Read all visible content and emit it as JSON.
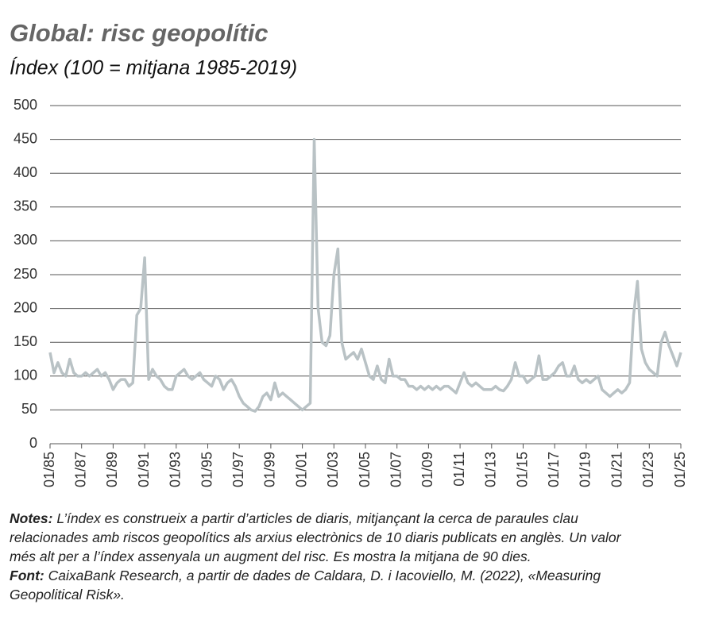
{
  "chart_data": {
    "type": "line",
    "title": "Global: risc geopolític",
    "subtitle": "Índex (100 = mitjana 1985-2019)",
    "x": [
      "01/85",
      "04/85",
      "07/85",
      "10/85",
      "01/86",
      "04/86",
      "07/86",
      "10/86",
      "01/87",
      "04/87",
      "07/87",
      "10/87",
      "01/88",
      "04/88",
      "07/88",
      "10/88",
      "01/89",
      "04/89",
      "07/89",
      "10/89",
      "01/90",
      "04/90",
      "07/90",
      "10/90",
      "01/91",
      "04/91",
      "07/91",
      "10/91",
      "01/92",
      "04/92",
      "07/92",
      "10/92",
      "01/93",
      "04/93",
      "07/93",
      "10/93",
      "01/94",
      "04/94",
      "07/94",
      "10/94",
      "01/95",
      "04/95",
      "07/95",
      "10/95",
      "01/96",
      "04/96",
      "07/96",
      "10/96",
      "01/97",
      "04/97",
      "07/97",
      "10/97",
      "01/98",
      "04/98",
      "07/98",
      "10/98",
      "01/99",
      "04/99",
      "07/99",
      "10/99",
      "01/00",
      "04/00",
      "07/00",
      "10/00",
      "01/01",
      "04/01",
      "07/01",
      "10/01",
      "01/02",
      "04/02",
      "07/02",
      "10/02",
      "01/03",
      "04/03",
      "07/03",
      "10/03",
      "01/04",
      "04/04",
      "07/04",
      "10/04",
      "01/05",
      "04/05",
      "07/05",
      "10/05",
      "01/06",
      "04/06",
      "07/06",
      "10/06",
      "01/07",
      "04/07",
      "07/07",
      "10/07",
      "01/08",
      "04/08",
      "07/08",
      "10/08",
      "01/09",
      "04/09",
      "07/09",
      "10/09",
      "01/10",
      "04/10",
      "07/10",
      "10/10",
      "01/11",
      "04/11",
      "07/11",
      "10/11",
      "01/12",
      "04/12",
      "07/12",
      "10/12",
      "01/13",
      "04/13",
      "07/13",
      "10/13",
      "01/14",
      "04/14",
      "07/14",
      "10/14",
      "01/15",
      "04/15",
      "07/15",
      "10/15",
      "01/16",
      "04/16",
      "07/16",
      "10/16",
      "01/17",
      "04/17",
      "07/17",
      "10/17",
      "01/18",
      "04/18",
      "07/18",
      "10/18",
      "01/19",
      "04/19",
      "07/19",
      "10/19",
      "01/20",
      "04/20",
      "07/20",
      "10/20",
      "01/21",
      "04/21",
      "07/21",
      "10/21",
      "01/22",
      "04/22",
      "07/22",
      "10/22",
      "01/23",
      "04/23",
      "07/23",
      "10/23",
      "01/24",
      "04/24",
      "07/24",
      "10/24",
      "01/25"
    ],
    "values": [
      135,
      105,
      120,
      105,
      100,
      125,
      105,
      100,
      100,
      105,
      100,
      105,
      110,
      100,
      105,
      95,
      80,
      90,
      95,
      95,
      85,
      90,
      190,
      200,
      275,
      95,
      110,
      100,
      95,
      85,
      80,
      80,
      100,
      105,
      110,
      100,
      95,
      100,
      105,
      95,
      90,
      85,
      100,
      95,
      80,
      90,
      95,
      85,
      70,
      60,
      55,
      50,
      48,
      55,
      70,
      75,
      65,
      90,
      70,
      75,
      70,
      65,
      60,
      55,
      50,
      55,
      60,
      450,
      200,
      150,
      145,
      160,
      250,
      288,
      150,
      125,
      130,
      135,
      125,
      140,
      120,
      100,
      95,
      115,
      95,
      90,
      125,
      100,
      100,
      95,
      95,
      85,
      85,
      80,
      85,
      80,
      85,
      80,
      85,
      80,
      85,
      85,
      80,
      75,
      90,
      105,
      90,
      85,
      90,
      85,
      80,
      80,
      80,
      85,
      80,
      78,
      85,
      95,
      120,
      100,
      100,
      90,
      95,
      100,
      130,
      95,
      95,
      100,
      105,
      115,
      120,
      100,
      100,
      115,
      95,
      90,
      95,
      90,
      95,
      100,
      80,
      75,
      70,
      75,
      80,
      75,
      80,
      90,
      190,
      240,
      140,
      120,
      110,
      105,
      100,
      150,
      165,
      145,
      130,
      115,
      135
    ],
    "color": "#b9c2c5",
    "ylim": [
      0,
      500
    ],
    "yticks": [
      0,
      50,
      100,
      150,
      200,
      250,
      300,
      350,
      400,
      450,
      500
    ],
    "grid": true,
    "xticks": [
      "01/85",
      "01/87",
      "01/89",
      "01/91",
      "01/93",
      "01/95",
      "01/97",
      "01/99",
      "01/01",
      "01/03",
      "01/05",
      "01/07",
      "01/09",
      "01/11",
      "01/13",
      "01/15",
      "01/17",
      "01/19",
      "01/21",
      "01/23",
      "01/25"
    ],
    "notes": {
      "label": "Notes:",
      "text": " L’índex es construeix a partir d’articles de diaris, mitjançant la cerca de paraules clau relacionades amb riscos geopolítics als arxius electrònics de 10 diaris publicats en anglès. Un valor més alt per a l’índex assenyala un augment del risc. Es mostra la mitjana de 90 dies."
    },
    "source": {
      "label": "Font:",
      "text": " CaixaBank Research, a partir de dades de Caldara, D. i Iacoviello, M. (2022), «Measuring Geopolitical Risk»."
    }
  }
}
